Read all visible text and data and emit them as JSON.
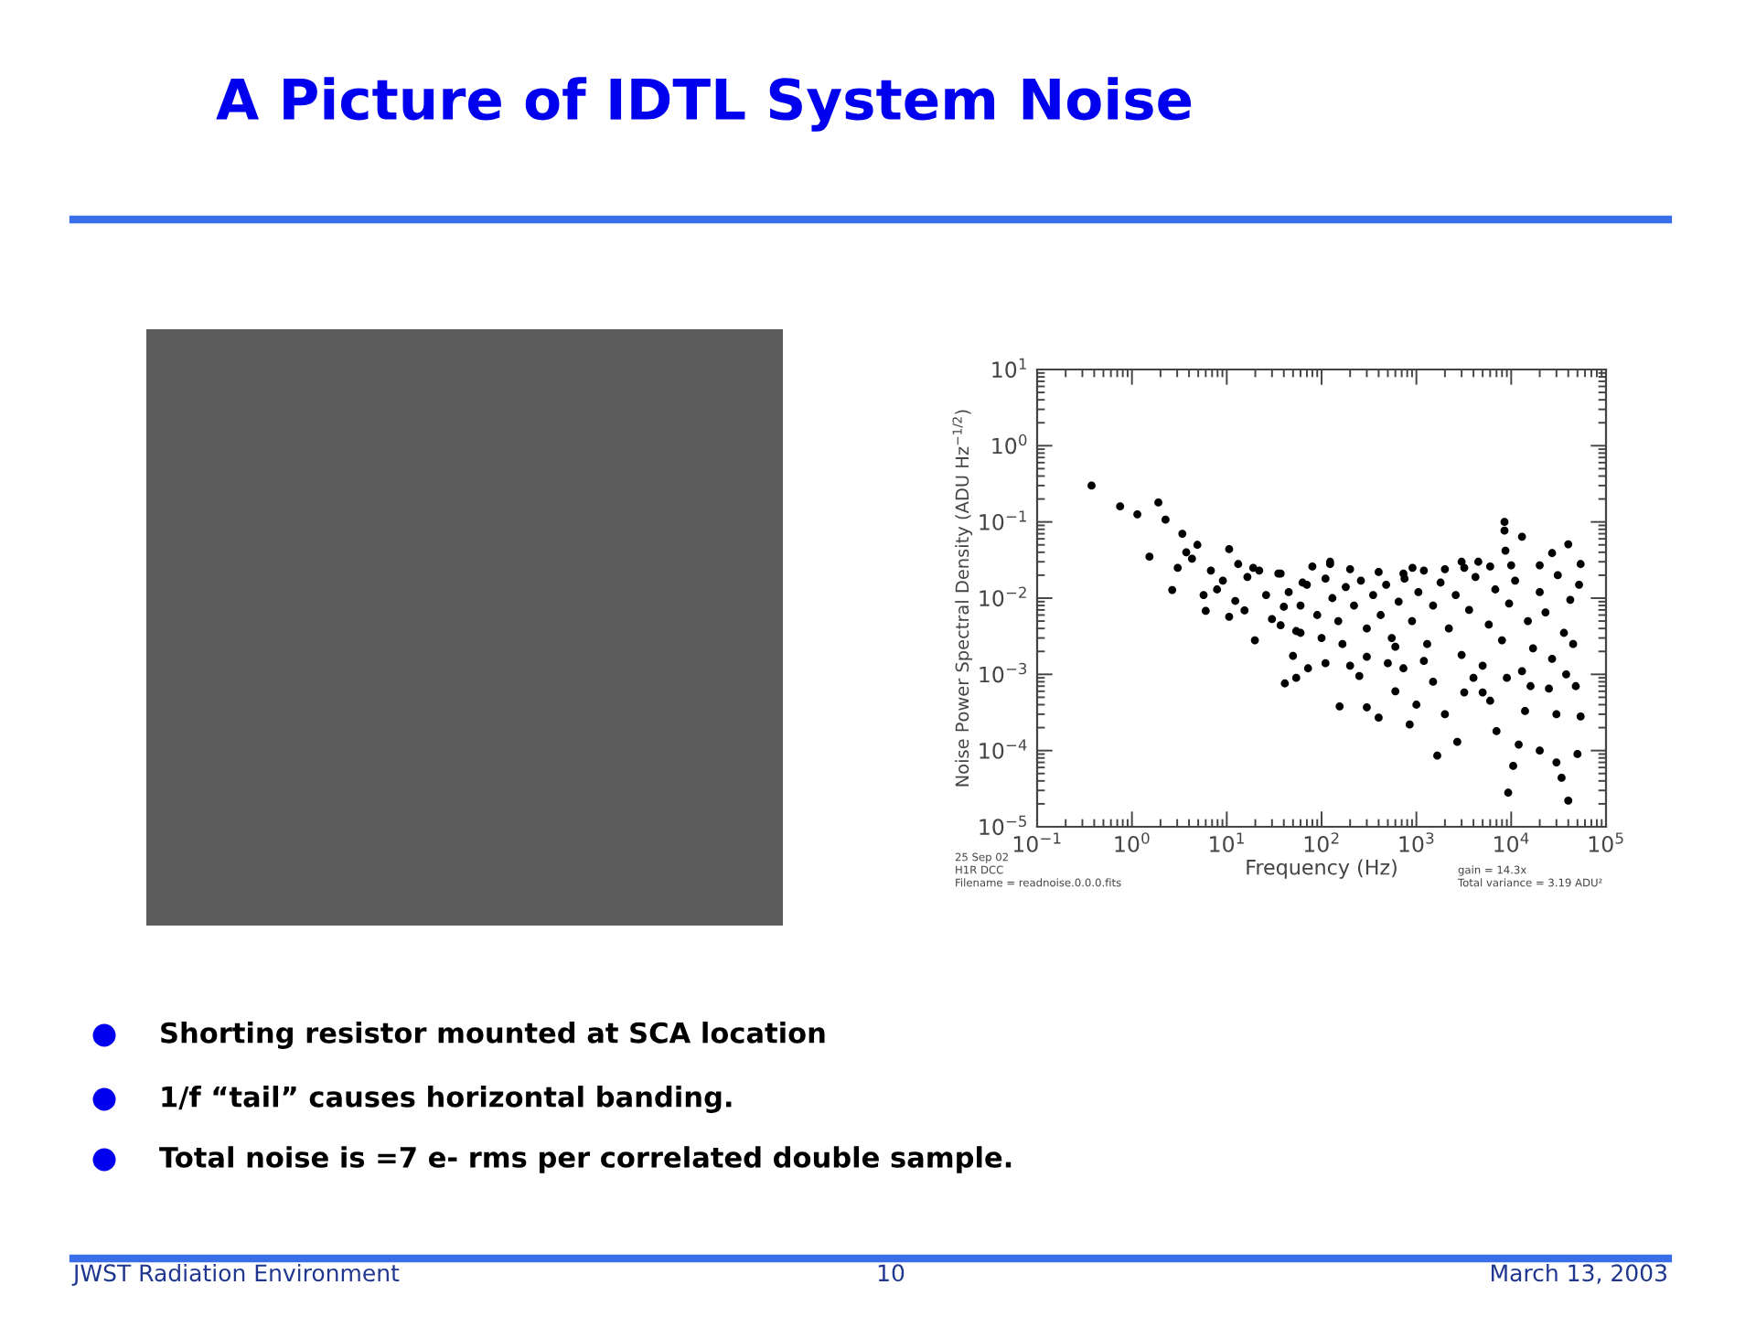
{
  "chart_data": {
    "type": "scatter",
    "title": "A Picture of IDTL System Noise",
    "xlabel": "Frequency (Hz)",
    "ylabel": "Noise Power Spectral Density (ADU Hz$^{−1/2}$)",
    "x": [
      0.375,
      0.75,
      1.14,
      1.9,
      2.26,
      1.53,
      2.66,
      3.4,
      3.04,
      3.74,
      4.9,
      4.3,
      5.7,
      6.0,
      10.6,
      19.8,
      41,
      54,
      50,
      72,
      6.8,
      9.1,
      7.9,
      12.3,
      10.6,
      15.4,
      16.5,
      22,
      26,
      30,
      35,
      40,
      54,
      63,
      13.2,
      19,
      37,
      80,
      123,
      200,
      400,
      730,
      1200,
      2000,
      3200,
      6000,
      10000,
      20000,
      54000,
      123,
      910,
      8500,
      8500,
      13000,
      40000,
      27000,
      8700,
      3000,
      4500,
      37,
      60,
      100,
      166,
      300,
      500,
      730,
      1500,
      3200,
      6000,
      14000,
      30000,
      54000,
      110,
      155,
      300,
      400,
      850,
      1660,
      2700,
      9300,
      40000,
      34000,
      10500,
      50000,
      5000,
      200,
      250,
      600,
      1000,
      2000,
      7000,
      12000,
      20000,
      30000,
      45,
      60,
      70,
      90,
      110,
      130,
      150,
      180,
      220,
      260,
      300,
      350,
      420,
      480,
      550,
      650,
      750,
      900,
      1050,
      1300,
      1500,
      1800,
      2200,
      2600,
      3000,
      3600,
      4200,
      5000,
      5800,
      6800,
      8000,
      9500,
      11000,
      13000,
      15000,
      17000,
      20000,
      23000,
      27000,
      31000,
      36000,
      42000,
      48000,
      52000,
      45000,
      38000,
      25000,
      16000,
      9000,
      4000,
      1200,
      600
    ],
    "values": [
      0.3,
      0.16,
      0.126,
      0.18,
      0.107,
      0.035,
      0.0128,
      0.07,
      0.025,
      0.04,
      0.05,
      0.033,
      0.011,
      0.0068,
      0.044,
      0.0028,
      0.00076,
      0.0009,
      0.00175,
      0.0012,
      0.023,
      0.017,
      0.013,
      0.0092,
      0.0057,
      0.0069,
      0.019,
      0.023,
      0.011,
      0.0053,
      0.021,
      0.0077,
      0.0037,
      0.016,
      0.028,
      0.025,
      0.021,
      0.026,
      0.028,
      0.024,
      0.022,
      0.021,
      0.023,
      0.024,
      0.025,
      0.026,
      0.027,
      0.027,
      0.028,
      0.03,
      0.025,
      0.1,
      0.077,
      0.064,
      0.051,
      0.039,
      0.042,
      0.03,
      0.03,
      0.0044,
      0.0035,
      0.003,
      0.0025,
      0.0017,
      0.0014,
      0.0012,
      0.0008,
      0.00058,
      0.00045,
      0.00033,
      0.0003,
      0.00028,
      0.0014,
      0.00038,
      0.00037,
      0.00027,
      0.00022,
      8.6e-05,
      0.00013,
      2.8e-05,
      2.2e-05,
      4.4e-05,
      6.3e-05,
      9e-05,
      0.00058,
      0.0013,
      0.00095,
      0.0006,
      0.0004,
      0.0003,
      0.00018,
      0.00012,
      0.0001,
      7e-05,
      0.012,
      0.008,
      0.015,
      0.006,
      0.018,
      0.01,
      0.005,
      0.014,
      0.008,
      0.017,
      0.004,
      0.011,
      0.006,
      0.015,
      0.003,
      0.009,
      0.018,
      0.005,
      0.012,
      0.0025,
      0.008,
      0.016,
      0.004,
      0.011,
      0.0018,
      0.007,
      0.019,
      0.0013,
      0.0045,
      0.013,
      0.0028,
      0.0085,
      0.017,
      0.0011,
      0.005,
      0.0022,
      0.012,
      0.0065,
      0.0016,
      0.02,
      0.0035,
      0.0095,
      0.0007,
      0.015,
      0.0025,
      0.001,
      0.00065,
      0.0007,
      0.0009,
      0.0009,
      0.0015,
      0.0023
    ],
    "color": "#000000",
    "marker": "circle",
    "log": "xy",
    "xlim": [
      0.1,
      100000
    ],
    "ylim": [
      1e-05,
      10
    ],
    "xticks": [
      {
        "value": 0.1,
        "label": "10$^{−1}$"
      },
      {
        "value": 1,
        "label": "10$^{0}$"
      },
      {
        "value": 10,
        "label": "10$^{1}$"
      },
      {
        "value": 100,
        "label": "10$^{2}$"
      },
      {
        "value": 1000,
        "label": "10$^{3}$"
      },
      {
        "value": 10000,
        "label": "10$^{4}$"
      },
      {
        "value": 100000,
        "label": "10$^{5}$"
      }
    ],
    "yticks": [
      {
        "value": 1e-05,
        "label": "10$^{−5}$"
      },
      {
        "value": 0.0001,
        "label": "10$^{−4}$"
      },
      {
        "value": 0.001,
        "label": "10$^{−3}$"
      },
      {
        "value": 0.01,
        "label": "10$^{−2}$"
      },
      {
        "value": 0.1,
        "label": "10$^{−1}$"
      },
      {
        "value": 1,
        "label": "10$^{0}$"
      },
      {
        "value": 10,
        "label": "10$^{1}$"
      }
    ],
    "annotations": [
      "25 Sep 02",
      "H1R DCC",
      "Filename = readnoise.0.0.0.fits",
      "gain = 14.3x",
      "Total variance = 3.19 ADU²",
      "Shorting resistor mounted at SCA location",
      "1/f “tail” causes horizontal banding.",
      "Total noise is =7 e- rms per correlated double sample.",
      "JWST Radiation Environment",
      "10",
      "March 13, 2003"
    ]
  }
}
